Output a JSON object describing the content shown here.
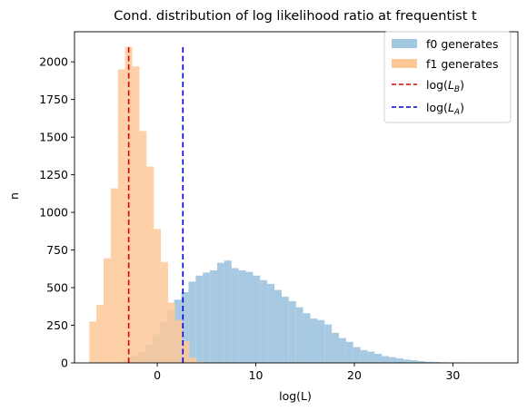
{
  "chart_data": {
    "type": "histogram",
    "title": "Cond. distribution of log likelihood ratio at frequentist  t",
    "xlabel": "log(L)",
    "ylabel": "n",
    "xlim": [
      -8.4,
      36.6
    ],
    "ylim": [
      0,
      2200
    ],
    "xticks": [
      0,
      10,
      20,
      30
    ],
    "yticks": [
      0,
      250,
      500,
      750,
      1000,
      1250,
      1500,
      1750,
      2000
    ],
    "grid": false,
    "legend_position": "top-right",
    "series": [
      {
        "name": "f0 generates",
        "color": "#a2c7e0",
        "bin_start": -4.1,
        "bin_width": 0.727,
        "counts": [
          5,
          20,
          45,
          75,
          120,
          190,
          270,
          350,
          420,
          470,
          540,
          580,
          600,
          615,
          665,
          680,
          630,
          615,
          605,
          580,
          550,
          525,
          485,
          440,
          410,
          370,
          330,
          295,
          285,
          255,
          200,
          165,
          140,
          105,
          85,
          75,
          60,
          45,
          38,
          30,
          22,
          18,
          12,
          8,
          6,
          4,
          3,
          2,
          2,
          1,
          1,
          1,
          1,
          0,
          1
        ]
      },
      {
        "name": "f1 generates",
        "color": "#fdc898",
        "bin_start": -6.9,
        "bin_width": 0.727,
        "counts": [
          275,
          385,
          695,
          1160,
          1950,
          2100,
          1970,
          1540,
          1305,
          890,
          670,
          400,
          285,
          145,
          35,
          6
        ]
      }
    ],
    "lines": [
      {
        "name": "log(L_B)",
        "x": -2.9,
        "color": "#e00000",
        "style": "dashed",
        "y_top": 2100
      },
      {
        "name": "log(L_A)",
        "x": 2.6,
        "color": "#0000e0",
        "style": "dashed",
        "y_top": 2100
      }
    ],
    "legend": [
      {
        "label": "f0 generates",
        "kind": "patch",
        "color": "#a2c7e0"
      },
      {
        "label": "f1 generates",
        "kind": "patch",
        "color": "#fdc898"
      },
      {
        "label_main": "log(",
        "label_sym": "L",
        "label_sub": "B",
        "label_end": ")",
        "kind": "dashed-line",
        "color": "#e00000"
      },
      {
        "label_main": "log(",
        "label_sym": "L",
        "label_sub": "A",
        "label_end": ")",
        "kind": "dashed-line",
        "color": "#0000e0"
      }
    ]
  }
}
